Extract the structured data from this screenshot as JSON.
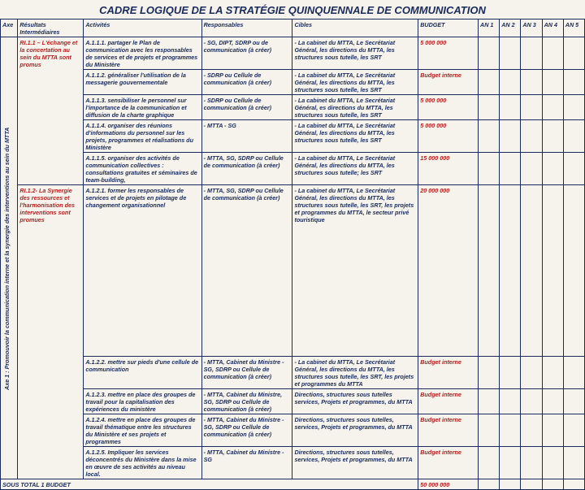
{
  "title": "CADRE LOGIQUE DE LA STRATÉGIE QUINQUENNALE DE COMMUNICATION",
  "headers": {
    "axe": "Axe",
    "ri": "Résultats Intermédiaires",
    "act": "Activités",
    "resp": "Responsables",
    "cib": "Cibles",
    "bud": "BUDGET",
    "an1": "AN 1",
    "an2": "AN 2",
    "an3": "AN 3",
    "an4": "AN 4",
    "an5": "AN 5"
  },
  "axe_label": "Axe 1 : Promouvoir la communication interne et la synergie des interventions au sein du MTTA",
  "ri": {
    "ri11": "RI.1.1 – L'échange et la concertation au sein du MTTA sont promus",
    "ri12": "RI.1.2- La Synergie des ressources et l'harmonisation des interventions sont promues"
  },
  "rows": [
    {
      "act": "A.1.1.1. partager le Plan de communication avec les responsables de services et de projets et programmes du Ministère",
      "resp": "- SG, DIPT, SDRP ou de communication (à créer)",
      "cib": "- La cabinet du MTTA, Le Secrétariat Général, les directions du MTTA, les structures sous tutelle, les SRT",
      "bud": "5 000 000"
    },
    {
      "act": "A.1.1.2. généraliser l'utilisation de la messagerie gouvernementale",
      "resp": "- SDRP ou Cellule de communication (à créer)",
      "cib": "- La cabinet du MTTA, Le Secrétariat Général, les directions du MTTA, les structures sous tutelle, les SRT",
      "bud": "Budget interne"
    },
    {
      "act": "A.1.1.3. sensibiliser le personnel sur l'importance de la communication et diffusion de la charte graphique",
      "resp": "- SDRP ou Cellule de communication (à créer)",
      "cib": "- La cabinet du MTTA, Le Secrétariat Général, es directions du MTTA, les structures sous tutelle, les SRT",
      "bud": "5 000 000"
    },
    {
      "act": "A.1.1.4. organiser des réunions d'informations du personnel sur les projets, programmes et réalisations du Ministère",
      "resp": "- MTTA\n- SG",
      "cib": "- La cabinet du MTTA, Le Secrétariat Général, les directions du MTTA, les structures sous tutelle, les SRT",
      "bud": "5 000 000"
    },
    {
      "act": "A.1.1.5. organiser des activités de communication collectives : consultations gratuites et séminaires de team-building,",
      "resp": "- MTTA, SG, SDRP ou Cellule de communication (à créer)",
      "cib": "- La cabinet du MTTA, Le Secrétariat Général, les directions du MTTA, les structures sous tutelle; les SRT",
      "bud": "15 000 000"
    },
    {
      "act": "A.1.2.1. former les responsables de services et de projets en pilotage de changement organisationnel",
      "resp": "- MTTA, SG, SDRP ou Cellule de communication (à créer)",
      "cib": "- La cabinet du MTTA, Le Secrétariat Général, les directions du MTTA, les structures sous tutelle, les SRT, les projets et programmes du MTTA, le secteur privé touristique",
      "bud": "20 000 000"
    },
    {
      "act": "A.1.2.2. mettre sur pieds d'une cellule de communication",
      "resp": "- MTTA, Cabinet du Ministre\n- SG, SDRP ou Cellule de communication (à créer)",
      "cib": "- La cabinet du MTTA, Le Secrétariat Général, les directions du MTTA, les structures sous tutelle, les SRT, les projets et programmes du MTTA",
      "bud": "Budget interne"
    },
    {
      "act": "A.1.2.3. mettre en place des groupes de travail pour la capitalisation des expériences du ministère",
      "resp": "- MTTA, Cabinet du Ministre, SG, SDRP ou Cellule de communication (à créer)",
      "cib": "Directions, structures sous tutelles services, Projets et programmes, du MTTA",
      "bud": "Budget interne"
    },
    {
      "act": "A.1.2.4. mettre en place des groupes de travail thématique entre les structures du Ministère et ses projets et programmes",
      "resp": "- MTTA, Cabinet du Ministre\n-SG, SDRP ou Cellule de communication (à créer)",
      "cib": "Directions, structures sous tutelles, services, Projets et programmes, du MTTA",
      "bud": "Budget interne"
    },
    {
      "act": "A.1.2.5. Impliquer les services déconcentrés du Ministère dans la mise en œuvre de ses activités au niveau local.",
      "resp": "- MTTA, Cabinet du Ministre\n- SG",
      "cib": "Directions, structures sous tutelles, services, Projets et programmes, du MTTA",
      "bud": "Budget interne"
    }
  ],
  "footer": {
    "label": "SOUS TOTAL 1 BUDGET",
    "total": "50 000 000"
  },
  "colors": {
    "bg": "#f5f3ec",
    "text": "#1a2a5a",
    "border": "#1a2a5a",
    "red": "#b22222"
  }
}
